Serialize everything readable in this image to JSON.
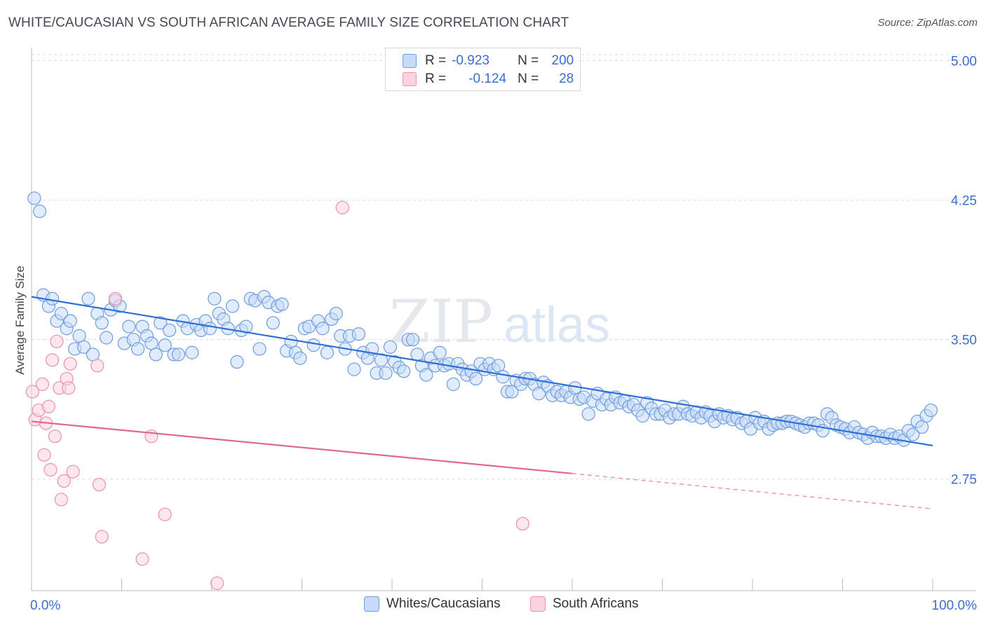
{
  "header": {
    "title": "WHITE/CAUCASIAN VS SOUTH AFRICAN AVERAGE FAMILY SIZE CORRELATION CHART",
    "source": "Source: ZipAtlas.com"
  },
  "stats": [
    {
      "r_label": "R =",
      "r_value": "-0.923",
      "n_label": "N =",
      "n_value": "200",
      "color": "#8ab4f0"
    },
    {
      "r_label": "R =",
      "r_value": "-0.124",
      "n_label": "N =",
      "n_value": "28",
      "color": "#f4a8c0"
    }
  ],
  "watermark": {
    "zip": "ZIP",
    "atlas": "atlas"
  },
  "chart_data": {
    "type": "scatter",
    "ylabel": "Average Family Size",
    "xlabel": "",
    "xlim": [
      0,
      100
    ],
    "ylim": [
      2.15,
      5.1
    ],
    "y_ticks": [
      2.75,
      3.5,
      4.25,
      5.0
    ],
    "y_tick_labels": [
      "2.75",
      "3.50",
      "4.25",
      "5.00"
    ],
    "x_tick_labels": [
      "0.0%",
      "100.0%"
    ],
    "grid": "horizontal-dashed",
    "legend_position": "bottom-center",
    "series": [
      {
        "name": "Whites/Caucasians",
        "color": "#6f9de0",
        "fill": "#c7daf7",
        "trend": {
          "x": [
            0,
            100
          ],
          "y": [
            3.73,
            2.93
          ]
        },
        "points": [
          [
            0.3,
            4.26
          ],
          [
            0.9,
            4.19
          ],
          [
            1.3,
            3.74
          ],
          [
            1.9,
            3.68
          ],
          [
            2.3,
            3.72
          ],
          [
            2.8,
            3.6
          ],
          [
            3.3,
            3.64
          ],
          [
            3.9,
            3.56
          ],
          [
            4.3,
            3.6
          ],
          [
            4.8,
            3.45
          ],
          [
            5.3,
            3.52
          ],
          [
            5.8,
            3.46
          ],
          [
            6.3,
            3.72
          ],
          [
            6.8,
            3.42
          ],
          [
            7.3,
            3.64
          ],
          [
            7.8,
            3.59
          ],
          [
            8.3,
            3.51
          ],
          [
            8.8,
            3.66
          ],
          [
            9.3,
            3.71
          ],
          [
            9.8,
            3.68
          ],
          [
            10.3,
            3.48
          ],
          [
            10.8,
            3.57
          ],
          [
            11.3,
            3.5
          ],
          [
            11.8,
            3.45
          ],
          [
            12.3,
            3.57
          ],
          [
            12.8,
            3.52
          ],
          [
            13.3,
            3.48
          ],
          [
            13.8,
            3.42
          ],
          [
            14.3,
            3.59
          ],
          [
            14.8,
            3.47
          ],
          [
            15.3,
            3.55
          ],
          [
            15.8,
            3.42
          ],
          [
            16.3,
            3.42
          ],
          [
            16.8,
            3.6
          ],
          [
            17.3,
            3.56
          ],
          [
            17.8,
            3.43
          ],
          [
            18.3,
            3.58
          ],
          [
            18.8,
            3.55
          ],
          [
            19.3,
            3.6
          ],
          [
            19.8,
            3.56
          ],
          [
            20.3,
            3.72
          ],
          [
            20.8,
            3.64
          ],
          [
            21.3,
            3.61
          ],
          [
            21.8,
            3.56
          ],
          [
            22.3,
            3.68
          ],
          [
            22.8,
            3.38
          ],
          [
            23.3,
            3.55
          ],
          [
            23.8,
            3.57
          ],
          [
            24.3,
            3.72
          ],
          [
            24.8,
            3.71
          ],
          [
            25.3,
            3.45
          ],
          [
            25.8,
            3.73
          ],
          [
            26.3,
            3.7
          ],
          [
            26.8,
            3.59
          ],
          [
            27.3,
            3.68
          ],
          [
            27.8,
            3.69
          ],
          [
            28.3,
            3.44
          ],
          [
            28.8,
            3.49
          ],
          [
            29.3,
            3.43
          ],
          [
            29.8,
            3.4
          ],
          [
            30.3,
            3.56
          ],
          [
            30.8,
            3.57
          ],
          [
            31.3,
            3.47
          ],
          [
            31.8,
            3.6
          ],
          [
            32.3,
            3.56
          ],
          [
            32.8,
            3.43
          ],
          [
            33.3,
            3.61
          ],
          [
            33.8,
            3.64
          ],
          [
            34.3,
            3.52
          ],
          [
            34.8,
            3.45
          ],
          [
            35.3,
            3.52
          ],
          [
            35.8,
            3.34
          ],
          [
            36.3,
            3.53
          ],
          [
            36.8,
            3.43
          ],
          [
            37.3,
            3.4
          ],
          [
            37.8,
            3.45
          ],
          [
            38.3,
            3.32
          ],
          [
            38.8,
            3.39
          ],
          [
            39.3,
            3.32
          ],
          [
            39.8,
            3.46
          ],
          [
            40.3,
            3.38
          ],
          [
            40.8,
            3.35
          ],
          [
            41.3,
            3.33
          ],
          [
            41.8,
            3.5
          ],
          [
            42.3,
            3.5
          ],
          [
            42.8,
            3.42
          ],
          [
            43.3,
            3.36
          ],
          [
            43.8,
            3.31
          ],
          [
            44.3,
            3.4
          ],
          [
            44.8,
            3.36
          ],
          [
            45.3,
            3.43
          ],
          [
            45.8,
            3.36
          ],
          [
            46.3,
            3.37
          ],
          [
            46.8,
            3.26
          ],
          [
            47.3,
            3.37
          ],
          [
            47.8,
            3.34
          ],
          [
            48.3,
            3.31
          ],
          [
            48.8,
            3.33
          ],
          [
            49.3,
            3.29
          ],
          [
            49.8,
            3.37
          ],
          [
            50.3,
            3.34
          ],
          [
            50.8,
            3.37
          ],
          [
            51.3,
            3.34
          ],
          [
            51.8,
            3.36
          ],
          [
            52.3,
            3.3
          ],
          [
            52.8,
            3.22
          ],
          [
            53.3,
            3.22
          ],
          [
            53.8,
            3.28
          ],
          [
            54.3,
            3.26
          ],
          [
            54.8,
            3.29
          ],
          [
            55.3,
            3.29
          ],
          [
            55.8,
            3.26
          ],
          [
            56.3,
            3.21
          ],
          [
            56.8,
            3.27
          ],
          [
            57.3,
            3.25
          ],
          [
            57.8,
            3.2
          ],
          [
            58.3,
            3.22
          ],
          [
            58.8,
            3.2
          ],
          [
            59.3,
            3.22
          ],
          [
            59.8,
            3.19
          ],
          [
            60.3,
            3.24
          ],
          [
            60.8,
            3.18
          ],
          [
            61.3,
            3.19
          ],
          [
            61.8,
            3.1
          ],
          [
            62.3,
            3.17
          ],
          [
            62.8,
            3.21
          ],
          [
            63.3,
            3.15
          ],
          [
            63.8,
            3.18
          ],
          [
            64.3,
            3.15
          ],
          [
            64.8,
            3.19
          ],
          [
            65.3,
            3.16
          ],
          [
            65.8,
            3.17
          ],
          [
            66.3,
            3.14
          ],
          [
            66.8,
            3.15
          ],
          [
            67.3,
            3.12
          ],
          [
            67.8,
            3.09
          ],
          [
            68.3,
            3.16
          ],
          [
            68.8,
            3.13
          ],
          [
            69.3,
            3.1
          ],
          [
            69.8,
            3.1
          ],
          [
            70.3,
            3.12
          ],
          [
            70.8,
            3.08
          ],
          [
            71.3,
            3.1
          ],
          [
            71.8,
            3.1
          ],
          [
            72.3,
            3.14
          ],
          [
            72.8,
            3.1
          ],
          [
            73.3,
            3.09
          ],
          [
            73.8,
            3.11
          ],
          [
            74.3,
            3.08
          ],
          [
            74.8,
            3.11
          ],
          [
            75.3,
            3.09
          ],
          [
            75.8,
            3.06
          ],
          [
            76.3,
            3.1
          ],
          [
            76.8,
            3.08
          ],
          [
            77.3,
            3.09
          ],
          [
            77.8,
            3.07
          ],
          [
            78.3,
            3.08
          ],
          [
            78.8,
            3.05
          ],
          [
            79.3,
            3.06
          ],
          [
            79.8,
            3.02
          ],
          [
            80.3,
            3.08
          ],
          [
            80.8,
            3.05
          ],
          [
            81.3,
            3.06
          ],
          [
            81.8,
            3.02
          ],
          [
            82.3,
            3.04
          ],
          [
            82.8,
            3.05
          ],
          [
            83.3,
            3.05
          ],
          [
            83.8,
            3.06
          ],
          [
            84.3,
            3.06
          ],
          [
            84.8,
            3.05
          ],
          [
            85.3,
            3.04
          ],
          [
            85.8,
            3.03
          ],
          [
            86.3,
            3.05
          ],
          [
            86.8,
            3.05
          ],
          [
            87.3,
            3.04
          ],
          [
            87.8,
            3.01
          ],
          [
            88.3,
            3.1
          ],
          [
            88.8,
            3.08
          ],
          [
            89.3,
            3.04
          ],
          [
            89.8,
            3.03
          ],
          [
            90.3,
            3.02
          ],
          [
            90.8,
            3.0
          ],
          [
            91.3,
            3.03
          ],
          [
            91.8,
            3.0
          ],
          [
            92.3,
            2.99
          ],
          [
            92.8,
            2.97
          ],
          [
            93.3,
            3.0
          ],
          [
            93.8,
            2.98
          ],
          [
            94.3,
            2.98
          ],
          [
            94.8,
            2.97
          ],
          [
            95.3,
            2.99
          ],
          [
            95.8,
            2.97
          ],
          [
            96.3,
            2.98
          ],
          [
            96.8,
            2.96
          ],
          [
            97.3,
            3.01
          ],
          [
            97.8,
            2.99
          ],
          [
            98.3,
            3.06
          ],
          [
            98.8,
            3.03
          ],
          [
            99.3,
            3.09
          ],
          [
            99.8,
            3.12
          ]
        ]
      },
      {
        "name": "South Africans",
        "color": "#ee8fb0",
        "fill": "#f9d3e0",
        "trend": {
          "x": [
            0,
            60
          ],
          "y": [
            3.06,
            2.78
          ]
        },
        "trend_dashed": {
          "x": [
            60,
            100
          ],
          "y": [
            2.78,
            2.59
          ]
        },
        "points": [
          [
            0.1,
            3.22
          ],
          [
            0.4,
            3.07
          ],
          [
            0.8,
            3.12
          ],
          [
            1.2,
            3.26
          ],
          [
            1.4,
            2.88
          ],
          [
            1.6,
            3.05
          ],
          [
            1.9,
            3.14
          ],
          [
            2.1,
            2.8
          ],
          [
            2.3,
            3.39
          ],
          [
            2.6,
            2.98
          ],
          [
            2.8,
            3.49
          ],
          [
            3.1,
            3.24
          ],
          [
            3.3,
            2.64
          ],
          [
            3.6,
            2.74
          ],
          [
            3.9,
            3.29
          ],
          [
            4.1,
            3.24
          ],
          [
            4.3,
            3.37
          ],
          [
            4.6,
            2.79
          ],
          [
            7.3,
            3.36
          ],
          [
            7.5,
            2.72
          ],
          [
            7.8,
            2.44
          ],
          [
            9.3,
            3.72
          ],
          [
            12.3,
            2.32
          ],
          [
            13.3,
            2.98
          ],
          [
            14.8,
            2.56
          ],
          [
            20.6,
            2.19
          ],
          [
            34.5,
            4.21
          ],
          [
            54.5,
            2.51
          ]
        ]
      }
    ]
  }
}
